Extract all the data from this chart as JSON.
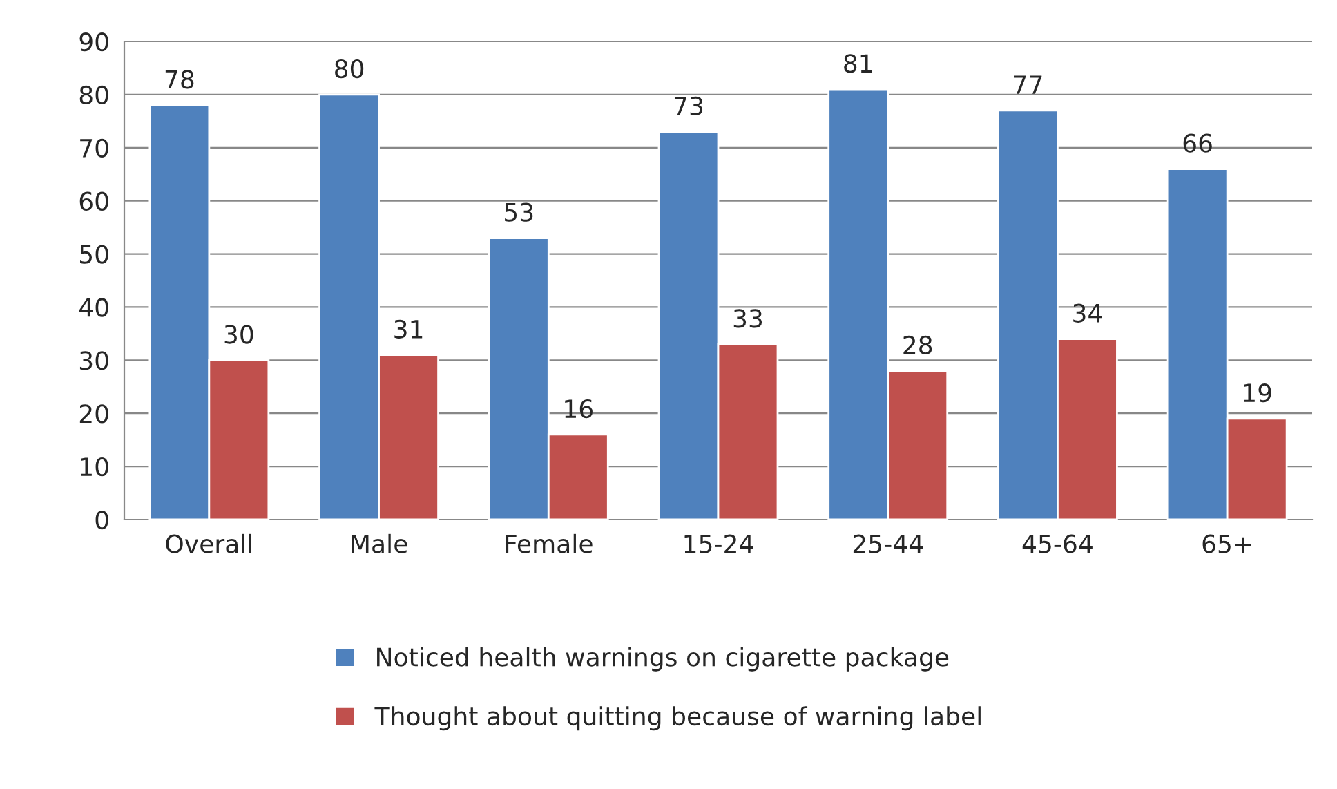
{
  "chart_data": {
    "type": "bar",
    "categories": [
      "Overall",
      "Male",
      "Female",
      "15-24",
      "25-44",
      "45-64",
      "65+"
    ],
    "series": [
      {
        "name": "Noticed health warnings on cigarette package",
        "color": "#4f81bd",
        "values": [
          78,
          80,
          53,
          73,
          81,
          77,
          66
        ]
      },
      {
        "name": "Thought about quitting because of warning label",
        "color": "#c0504d",
        "values": [
          30,
          31,
          16,
          33,
          28,
          34,
          19
        ]
      }
    ],
    "ylim": [
      0,
      90
    ],
    "yticks": [
      0,
      10,
      20,
      30,
      40,
      50,
      60,
      70,
      80,
      90
    ],
    "grid": "y",
    "legend": "bottom",
    "data_labels": true
  }
}
